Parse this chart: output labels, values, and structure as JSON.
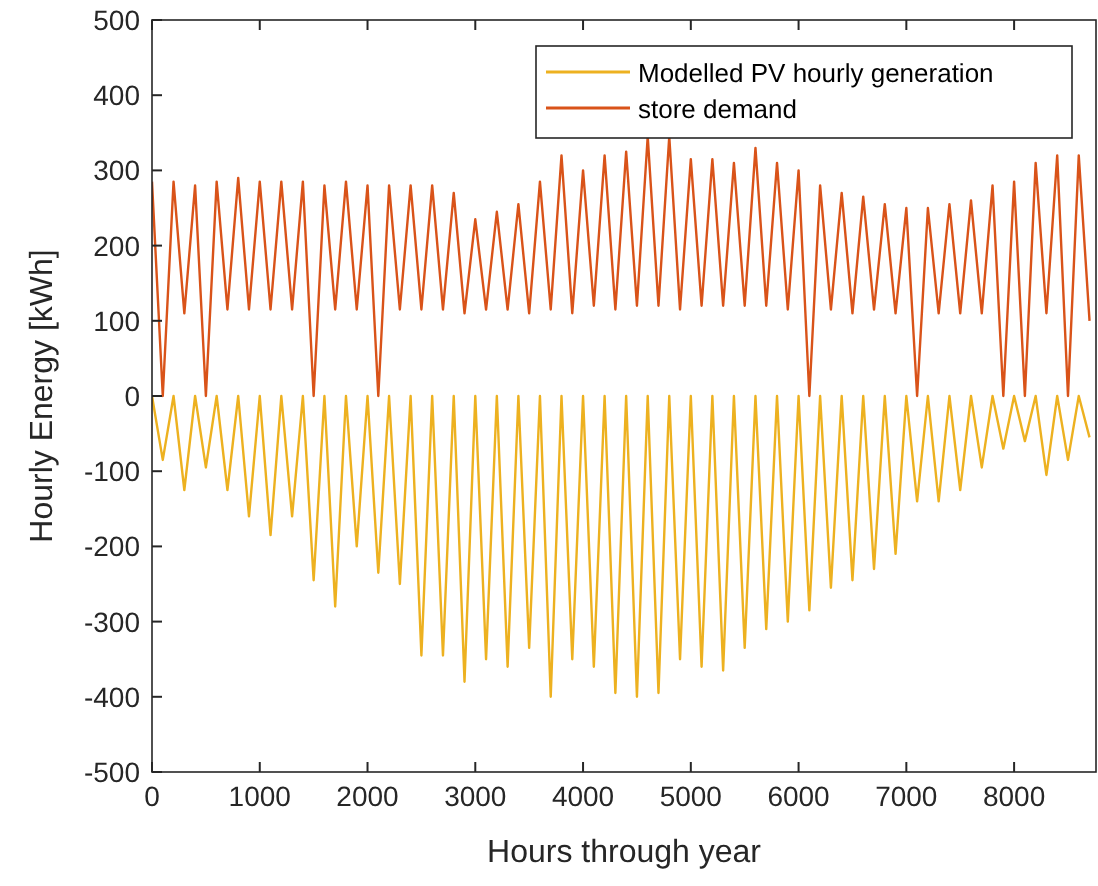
{
  "chart_data": {
    "type": "line",
    "xlabel": "Hours through year",
    "ylabel": "Hourly Energy [kWh]",
    "xlim": [
      0,
      8760
    ],
    "xticks": [
      0,
      1000,
      2000,
      3000,
      4000,
      5000,
      6000,
      7000,
      8000
    ],
    "ylim": [
      -500,
      500
    ],
    "yticks": [
      -500,
      -400,
      -300,
      -200,
      -100,
      0,
      100,
      200,
      300,
      400,
      500
    ],
    "grid": false,
    "legend": "top right",
    "x": [
      0,
      100,
      200,
      300,
      400,
      500,
      600,
      700,
      800,
      900,
      1000,
      1100,
      1200,
      1300,
      1400,
      1500,
      1600,
      1700,
      1800,
      1900,
      2000,
      2100,
      2200,
      2300,
      2400,
      2500,
      2600,
      2700,
      2800,
      2900,
      3000,
      3100,
      3200,
      3300,
      3400,
      3500,
      3600,
      3700,
      3800,
      3900,
      4000,
      4100,
      4200,
      4300,
      4400,
      4500,
      4600,
      4700,
      4800,
      4900,
      5000,
      5100,
      5200,
      5300,
      5400,
      5500,
      5600,
      5700,
      5800,
      5900,
      6000,
      6100,
      6200,
      6300,
      6400,
      6500,
      6600,
      6700,
      6800,
      6900,
      7000,
      7100,
      7200,
      7300,
      7400,
      7500,
      7600,
      7700,
      7800,
      7900,
      8000,
      8100,
      8200,
      8300,
      8400,
      8500,
      8600,
      8700
    ],
    "series": [
      {
        "name": "Modelled PV hourly generation",
        "color": "#edb120",
        "values": [
          0,
          -85,
          0,
          -125,
          0,
          -95,
          0,
          -125,
          0,
          -160,
          0,
          -185,
          0,
          -160,
          0,
          -245,
          0,
          -280,
          0,
          -200,
          0,
          -235,
          0,
          -250,
          0,
          -345,
          0,
          -345,
          0,
          -380,
          0,
          -350,
          0,
          -360,
          0,
          -335,
          0,
          -400,
          0,
          -350,
          0,
          -360,
          0,
          -395,
          0,
          -400,
          0,
          -395,
          0,
          -350,
          0,
          -360,
          0,
          -365,
          0,
          -335,
          0,
          -310,
          0,
          -300,
          0,
          -285,
          0,
          -255,
          0,
          -245,
          0,
          -230,
          0,
          -210,
          0,
          -140,
          0,
          -140,
          0,
          -125,
          0,
          -95,
          0,
          -70,
          0,
          -60,
          0,
          -105,
          0,
          -85,
          0,
          -55
        ]
      },
      {
        "name": "store demand",
        "color": "#d95319",
        "values": [
          285,
          0,
          285,
          110,
          280,
          0,
          285,
          115,
          290,
          115,
          285,
          115,
          285,
          115,
          285,
          0,
          280,
          115,
          285,
          115,
          280,
          0,
          280,
          115,
          280,
          115,
          280,
          115,
          270,
          110,
          235,
          115,
          245,
          115,
          255,
          110,
          285,
          115,
          320,
          110,
          300,
          120,
          320,
          115,
          325,
          120,
          345,
          120,
          345,
          115,
          315,
          120,
          315,
          120,
          310,
          120,
          330,
          120,
          310,
          115,
          300,
          0,
          280,
          115,
          270,
          110,
          265,
          115,
          255,
          110,
          250,
          0,
          250,
          110,
          255,
          110,
          260,
          110,
          280,
          0,
          285,
          0,
          310,
          110,
          320,
          0,
          320,
          100
        ]
      }
    ]
  }
}
